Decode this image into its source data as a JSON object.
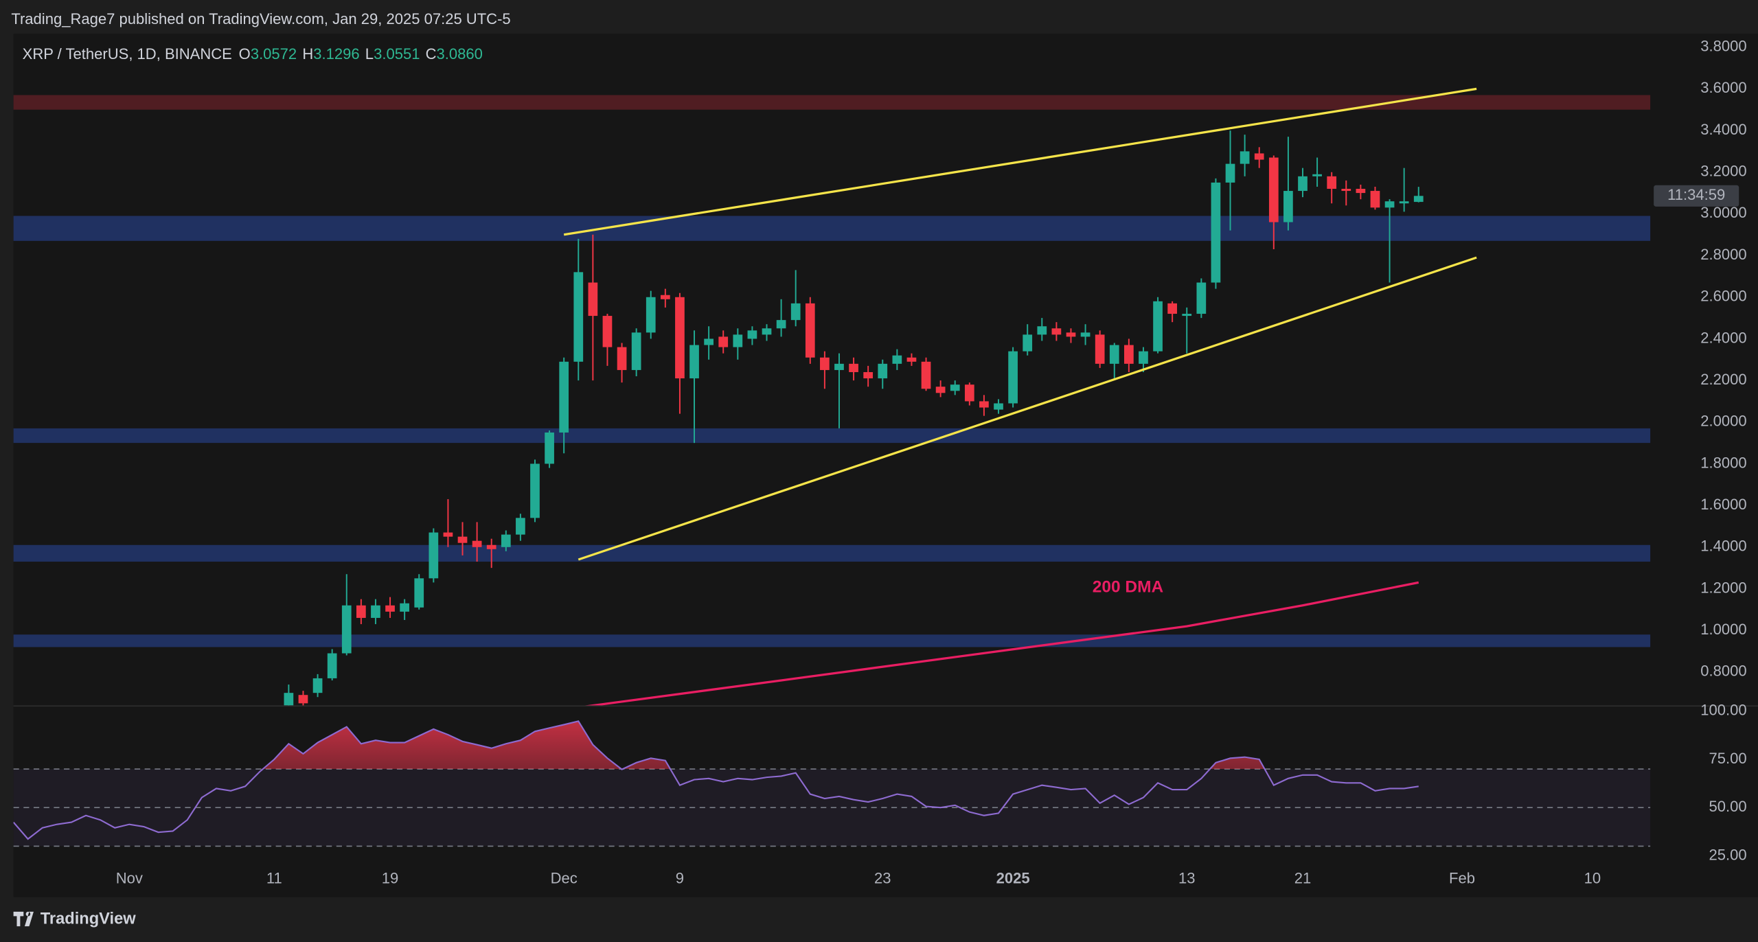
{
  "header": {
    "published": "Trading_Rage7 published on TradingView.com, Jan 29, 2025 07:25 UTC-5",
    "symbol": "XRP / TetherUS, 1D, BINANCE",
    "ohlc": [
      {
        "key": "O",
        "text": "3.0572"
      },
      {
        "key": "H",
        "text": "3.1296"
      },
      {
        "key": "L",
        "text": "3.0551"
      },
      {
        "key": "C",
        "text": "3.0860"
      }
    ],
    "countdown": "11:34:59",
    "footer": "TradingView"
  },
  "chart_data": [
    {
      "type": "candlestick",
      "x": [
        "2024-11-12",
        "2024-11-13",
        "2024-11-14",
        "2024-11-15",
        "2024-11-16",
        "2024-11-17",
        "2024-11-18",
        "2024-11-19",
        "2024-11-20",
        "2024-11-21",
        "2024-11-22",
        "2024-11-23",
        "2024-11-24",
        "2024-11-25",
        "2024-11-26",
        "2024-11-27",
        "2024-11-28",
        "2024-11-29",
        "2024-11-30",
        "2024-12-01",
        "2024-12-02",
        "2024-12-03",
        "2024-12-04",
        "2024-12-05",
        "2024-12-06",
        "2024-12-07",
        "2024-12-08",
        "2024-12-09",
        "2024-12-10",
        "2024-12-11",
        "2024-12-12",
        "2024-12-13",
        "2024-12-14",
        "2024-12-15",
        "2024-12-16",
        "2024-12-17",
        "2024-12-18",
        "2024-12-19",
        "2024-12-20",
        "2024-12-21",
        "2024-12-22",
        "2024-12-23",
        "2024-12-24",
        "2024-12-25",
        "2024-12-26",
        "2024-12-27",
        "2024-12-28",
        "2024-12-29",
        "2024-12-30",
        "2024-12-31",
        "2025-01-01",
        "2025-01-02",
        "2025-01-03",
        "2025-01-04",
        "2025-01-05",
        "2025-01-06",
        "2025-01-07",
        "2025-01-08",
        "2025-01-09",
        "2025-01-10",
        "2025-01-11",
        "2025-01-12",
        "2025-01-13",
        "2025-01-14",
        "2025-01-15",
        "2025-01-16",
        "2025-01-17",
        "2025-01-18",
        "2025-01-19",
        "2025-01-20",
        "2025-01-21",
        "2025-01-22",
        "2025-01-23",
        "2025-01-24",
        "2025-01-25",
        "2025-01-26",
        "2025-01-27",
        "2025-01-28",
        "2025-01-29"
      ],
      "open": [
        0.64,
        0.69,
        0.7,
        0.77,
        0.89,
        1.12,
        1.06,
        1.12,
        1.09,
        1.11,
        1.25,
        1.47,
        1.45,
        1.43,
        1.41,
        1.4,
        1.46,
        1.54,
        1.8,
        1.95,
        2.29,
        2.67,
        2.51,
        2.36,
        2.25,
        2.43,
        2.61,
        2.6,
        2.21,
        2.37,
        2.41,
        2.36,
        2.4,
        2.42,
        2.45,
        2.49,
        2.57,
        2.31,
        2.25,
        2.28,
        2.24,
        2.21,
        2.28,
        2.31,
        2.29,
        2.17,
        2.15,
        2.18,
        2.1,
        2.06,
        2.09,
        2.34,
        2.42,
        2.45,
        2.43,
        2.41,
        2.42,
        2.28,
        2.37,
        2.28,
        2.34,
        2.57,
        2.51,
        2.52,
        2.67,
        3.15,
        3.24,
        3.29,
        3.27,
        2.96,
        3.11,
        3.18,
        3.18,
        3.12,
        3.12,
        3.11,
        3.03,
        3.05,
        3.0572
      ],
      "high": [
        0.74,
        0.71,
        0.79,
        0.91,
        1.27,
        1.15,
        1.15,
        1.16,
        1.15,
        1.27,
        1.49,
        1.63,
        1.52,
        1.52,
        1.44,
        1.48,
        1.56,
        1.82,
        1.96,
        2.31,
        2.88,
        2.9,
        2.52,
        2.38,
        2.45,
        2.63,
        2.64,
        2.62,
        2.44,
        2.46,
        2.44,
        2.45,
        2.46,
        2.47,
        2.59,
        2.73,
        2.6,
        2.34,
        2.33,
        2.31,
        2.27,
        2.3,
        2.35,
        2.33,
        2.31,
        2.2,
        2.2,
        2.19,
        2.13,
        2.11,
        2.36,
        2.47,
        2.5,
        2.48,
        2.45,
        2.47,
        2.44,
        2.38,
        2.4,
        2.36,
        2.6,
        2.58,
        2.55,
        2.69,
        3.17,
        3.4,
        3.38,
        3.32,
        3.28,
        3.37,
        3.22,
        3.27,
        3.2,
        3.16,
        3.14,
        3.13,
        3.07,
        3.22,
        3.1296
      ],
      "low": [
        0.62,
        0.62,
        0.68,
        0.76,
        0.88,
        1.03,
        1.03,
        1.06,
        1.05,
        1.1,
        1.23,
        1.4,
        1.36,
        1.33,
        1.3,
        1.38,
        1.43,
        1.52,
        1.78,
        1.85,
        2.2,
        2.2,
        2.27,
        2.19,
        2.22,
        2.4,
        2.55,
        2.04,
        1.9,
        2.3,
        2.33,
        2.3,
        2.37,
        2.39,
        2.41,
        2.46,
        2.28,
        2.16,
        1.97,
        2.2,
        2.17,
        2.16,
        2.25,
        2.27,
        2.15,
        2.12,
        2.13,
        2.08,
        2.03,
        2.04,
        2.07,
        2.32,
        2.39,
        2.39,
        2.38,
        2.37,
        2.26,
        2.21,
        2.24,
        2.24,
        2.33,
        2.48,
        2.33,
        2.5,
        2.64,
        2.92,
        3.18,
        3.22,
        2.83,
        2.92,
        3.08,
        3.13,
        3.05,
        3.04,
        3.07,
        3.02,
        2.67,
        3.01,
        3.0551
      ],
      "close": [
        0.7,
        0.65,
        0.77,
        0.89,
        1.12,
        1.06,
        1.12,
        1.09,
        1.13,
        1.25,
        1.47,
        1.45,
        1.42,
        1.4,
        1.39,
        1.46,
        1.54,
        1.8,
        1.95,
        2.29,
        2.72,
        2.51,
        2.36,
        2.25,
        2.43,
        2.6,
        2.59,
        2.21,
        2.37,
        2.4,
        2.36,
        2.42,
        2.44,
        2.45,
        2.49,
        2.57,
        2.31,
        2.25,
        2.28,
        2.24,
        2.21,
        2.28,
        2.32,
        2.29,
        2.16,
        2.14,
        2.18,
        2.1,
        2.07,
        2.09,
        2.34,
        2.42,
        2.46,
        2.42,
        2.41,
        2.43,
        2.28,
        2.37,
        2.28,
        2.34,
        2.58,
        2.52,
        2.52,
        2.67,
        3.15,
        3.24,
        3.3,
        3.26,
        2.96,
        3.11,
        3.18,
        3.19,
        3.12,
        3.11,
        3.1,
        3.03,
        3.06,
        3.06,
        3.086
      ],
      "up_color": "#22ab94",
      "down_color": "#f23645",
      "xlim": [
        "2024-10-24",
        "2025-02-14"
      ],
      "xticks": [
        {
          "value": "2024-11-01",
          "label": "Nov"
        },
        {
          "value": "2024-11-11",
          "label": "11"
        },
        {
          "value": "2024-11-19",
          "label": "19"
        },
        {
          "value": "2024-12-01",
          "label": "Dec"
        },
        {
          "value": "2024-12-09",
          "label": "9"
        },
        {
          "value": "2024-12-23",
          "label": "23"
        },
        {
          "value": "2025-01-01",
          "label": "2025"
        },
        {
          "value": "2025-01-13",
          "label": "13"
        },
        {
          "value": "2025-01-21",
          "label": "21"
        },
        {
          "value": "2025-02-01",
          "label": "Feb"
        },
        {
          "value": "2025-02-10",
          "label": "10"
        }
      ],
      "ylim": [
        0.64,
        3.865
      ],
      "yticks": [
        {
          "value": 0.8,
          "label": "0.8000"
        },
        {
          "value": 1.0,
          "label": "1.0000"
        },
        {
          "value": 1.2,
          "label": "1.2000"
        },
        {
          "value": 1.4,
          "label": "1.4000"
        },
        {
          "value": 1.6,
          "label": "1.6000"
        },
        {
          "value": 1.8,
          "label": "1.8000"
        },
        {
          "value": 2.0,
          "label": "2.0000"
        },
        {
          "value": 2.2,
          "label": "2.2000"
        },
        {
          "value": 2.4,
          "label": "2.4000"
        },
        {
          "value": 2.6,
          "label": "2.6000"
        },
        {
          "value": 2.8,
          "label": "2.8000"
        },
        {
          "value": 3.0,
          "label": "3.0000"
        },
        {
          "value": 3.2,
          "label": "3.2000"
        },
        {
          "value": 3.4,
          "label": "3.4000"
        },
        {
          "value": 3.6,
          "label": "3.6000"
        },
        {
          "value": 3.8,
          "label": "3.8000"
        }
      ],
      "zones": [
        {
          "from": 3.5,
          "to": 3.57,
          "color": "#5a1f24"
        },
        {
          "from": 2.87,
          "to": 2.99,
          "color": "#22366f"
        },
        {
          "from": 1.9,
          "to": 1.97,
          "color": "#22366f"
        },
        {
          "from": 1.33,
          "to": 1.41,
          "color": "#22366f"
        },
        {
          "from": 0.92,
          "to": 0.98,
          "color": "#22366f"
        }
      ],
      "trendline_color": "#f5e44a",
      "trendlines": [
        {
          "x": [
            "2024-12-01",
            "2025-02-02"
          ],
          "y": [
            2.9,
            3.6
          ]
        },
        {
          "x": [
            "2024-12-02",
            "2025-02-02"
          ],
          "y": [
            1.34,
            2.79
          ]
        }
      ],
      "overlays": [
        {
          "name": "200 DMA",
          "color": "#e91e63",
          "x": [
            "2024-12-02",
            "2024-12-16",
            "2024-12-31",
            "2025-01-13",
            "2025-01-21",
            "2025-01-29"
          ],
          "values": [
            0.63,
            0.76,
            0.9,
            1.02,
            1.12,
            1.23
          ]
        }
      ]
    },
    {
      "type": "line",
      "color": "#8e6bd1",
      "x": [
        "2024-10-24",
        "2024-10-25",
        "2024-10-26",
        "2024-10-27",
        "2024-10-28",
        "2024-10-29",
        "2024-10-30",
        "2024-10-31",
        "2024-11-01",
        "2024-11-02",
        "2024-11-03",
        "2024-11-04",
        "2024-11-05",
        "2024-11-06",
        "2024-11-07",
        "2024-11-08",
        "2024-11-09",
        "2024-11-10",
        "2024-11-11",
        "2024-11-12",
        "2024-11-13",
        "2024-11-14",
        "2024-11-15",
        "2024-11-16",
        "2024-11-17",
        "2024-11-18",
        "2024-11-19",
        "2024-11-20",
        "2024-11-21",
        "2024-11-22",
        "2024-11-23",
        "2024-11-24",
        "2024-11-25",
        "2024-11-26",
        "2024-11-27",
        "2024-11-28",
        "2024-11-29",
        "2024-11-30",
        "2024-12-01",
        "2024-12-02",
        "2024-12-03",
        "2024-12-04",
        "2024-12-05",
        "2024-12-06",
        "2024-12-07",
        "2024-12-08",
        "2024-12-09",
        "2024-12-10",
        "2024-12-11",
        "2024-12-12",
        "2024-12-13",
        "2024-12-14",
        "2024-12-15",
        "2024-12-16",
        "2024-12-17",
        "2024-12-18",
        "2024-12-19",
        "2024-12-20",
        "2024-12-21",
        "2024-12-22",
        "2024-12-23",
        "2024-12-24",
        "2024-12-25",
        "2024-12-26",
        "2024-12-27",
        "2024-12-28",
        "2024-12-29",
        "2024-12-30",
        "2024-12-31",
        "2025-01-01",
        "2025-01-02",
        "2025-01-03",
        "2025-01-04",
        "2025-01-05",
        "2025-01-06",
        "2025-01-07",
        "2025-01-08",
        "2025-01-09",
        "2025-01-10",
        "2025-01-11",
        "2025-01-12",
        "2025-01-13",
        "2025-01-14",
        "2025-01-15",
        "2025-01-16",
        "2025-01-17",
        "2025-01-18",
        "2025-01-19",
        "2025-01-20",
        "2025-01-21",
        "2025-01-22",
        "2025-01-23",
        "2025-01-24",
        "2025-01-25",
        "2025-01-26",
        "2025-01-27",
        "2025-01-28",
        "2025-01-29"
      ],
      "values": [
        42.4,
        33.7,
        39.5,
        41.3,
        42.4,
        45.9,
        43.6,
        39.5,
        41.3,
        40.1,
        37.2,
        37.8,
        43.6,
        55.2,
        59.9,
        58.7,
        61.0,
        68.6,
        75.0,
        83.1,
        77.9,
        83.7,
        87.8,
        91.9,
        83.1,
        84.9,
        83.7,
        83.7,
        87.2,
        90.7,
        87.8,
        84.3,
        82.6,
        80.8,
        83.1,
        84.9,
        89.5,
        91.3,
        93.0,
        94.8,
        82.6,
        75.6,
        69.8,
        73.3,
        75.6,
        74.4,
        61.6,
        64.5,
        65.1,
        63.4,
        65.1,
        64.5,
        65.7,
        66.3,
        68.0,
        57.0,
        54.7,
        55.8,
        54.1,
        52.9,
        54.7,
        57.0,
        55.8,
        50.6,
        50.0,
        51.2,
        47.7,
        45.9,
        47.1,
        57.0,
        59.3,
        61.6,
        60.5,
        59.3,
        59.9,
        52.3,
        56.4,
        51.7,
        55.2,
        62.8,
        59.3,
        59.3,
        65.1,
        73.3,
        75.6,
        76.2,
        75.0,
        61.6,
        65.1,
        66.9,
        66.9,
        63.4,
        62.8,
        62.8,
        58.7,
        59.9,
        59.9,
        61.0
      ],
      "xlim": [
        "2024-10-24",
        "2025-02-14"
      ],
      "ylim": [
        21,
        103
      ],
      "yticks": [
        {
          "value": 25,
          "label": "25.00"
        },
        {
          "value": 50,
          "label": "50.00"
        },
        {
          "value": 75,
          "label": "75.00"
        },
        {
          "value": 100,
          "label": "100.00"
        }
      ],
      "levels": [
        70,
        50,
        30
      ]
    }
  ]
}
